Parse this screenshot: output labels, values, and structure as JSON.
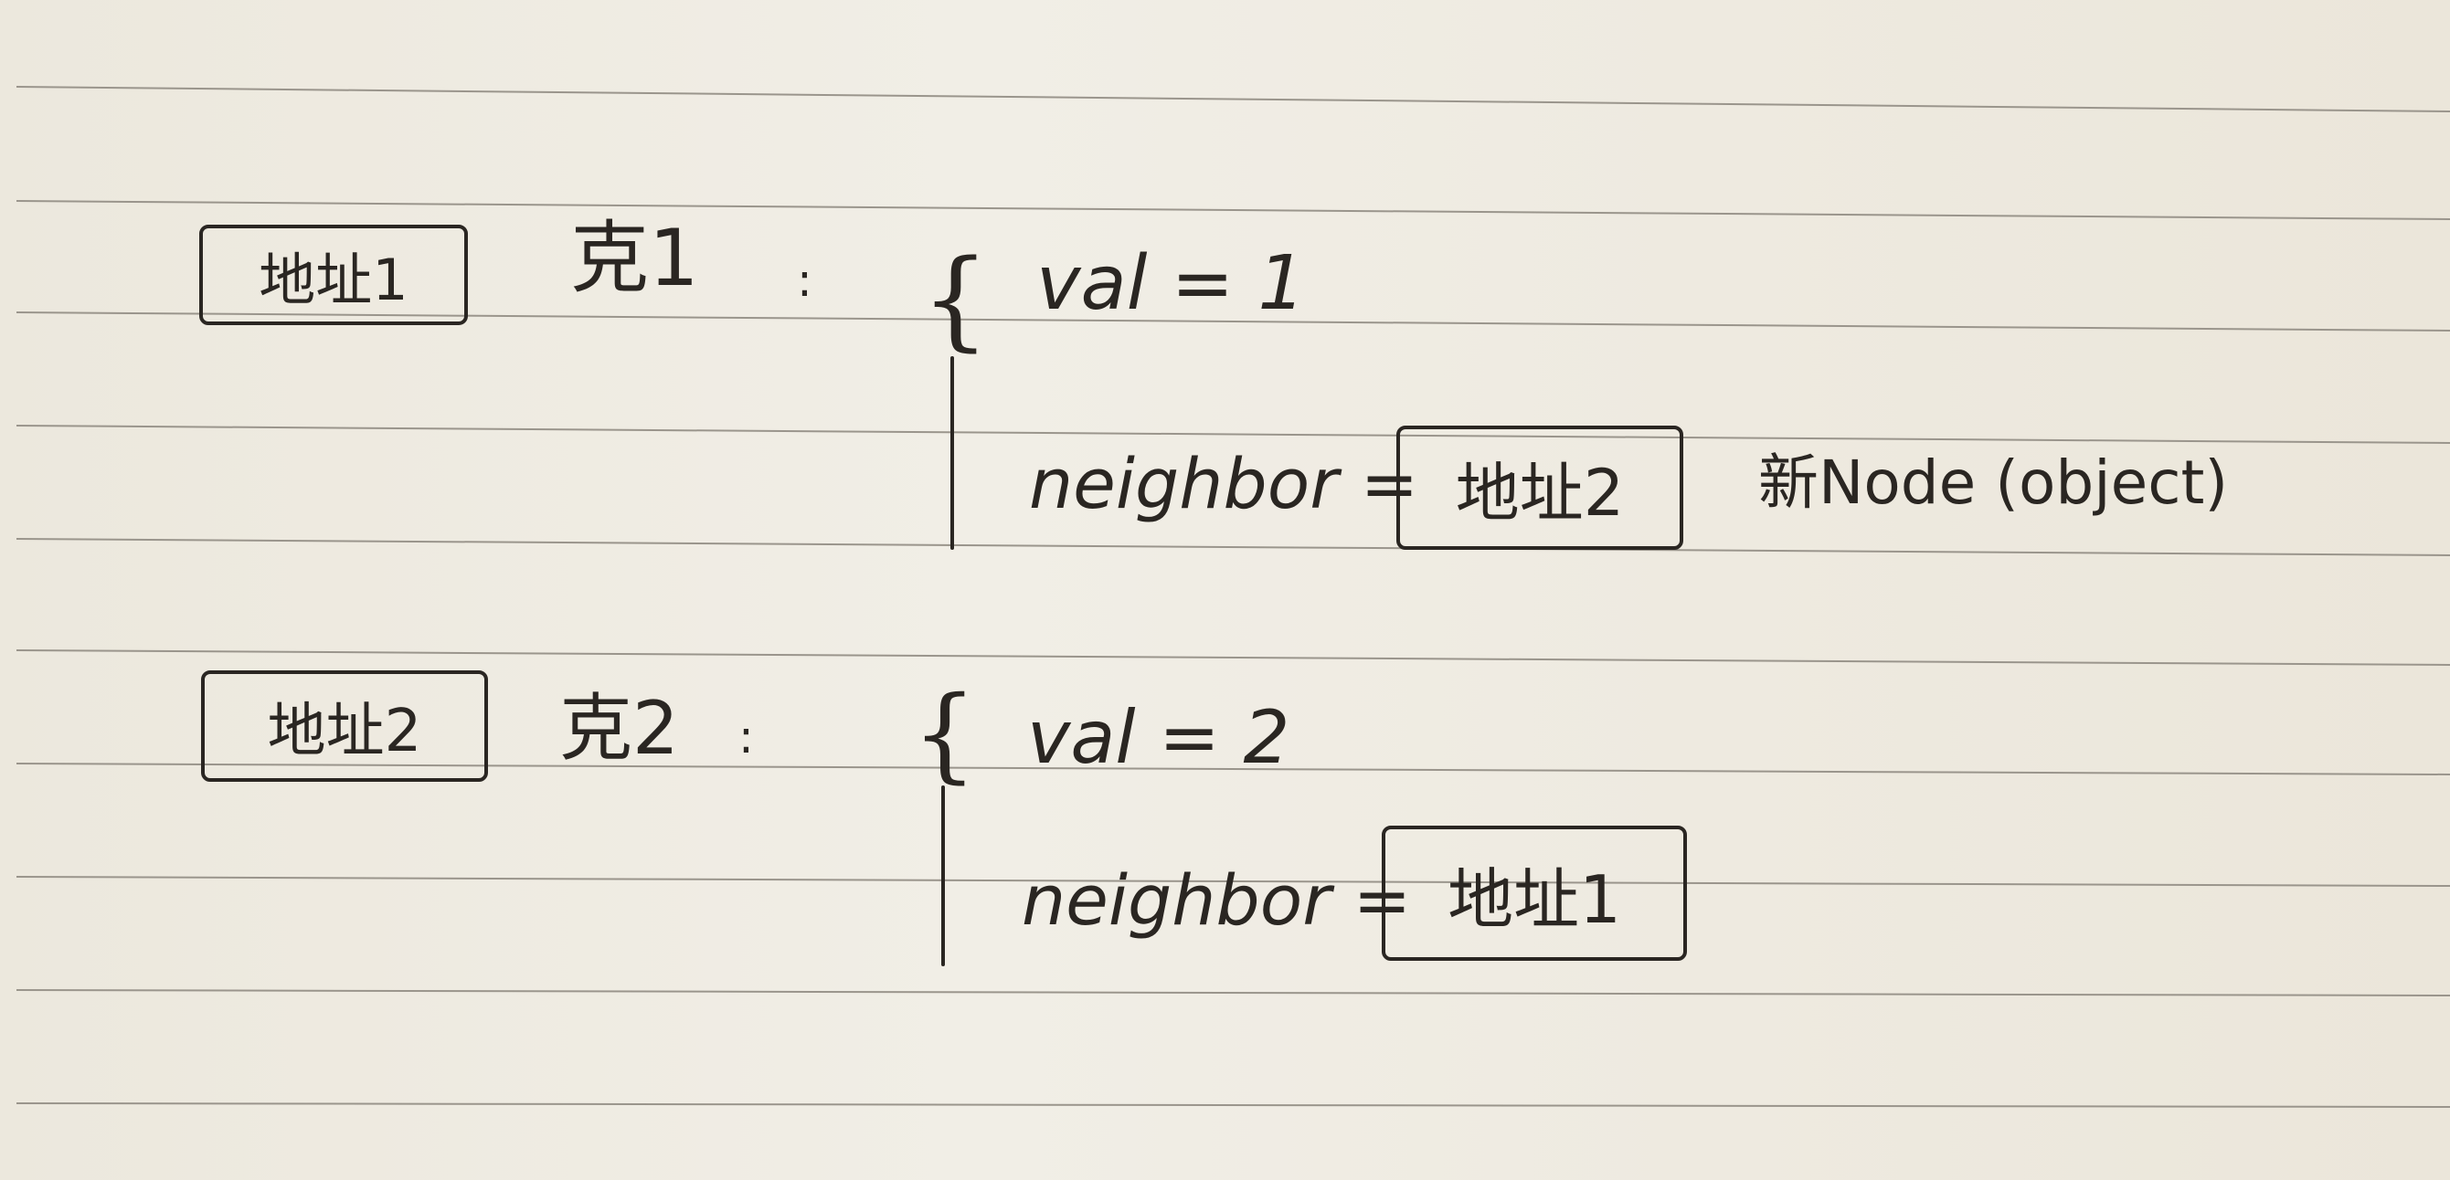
{
  "note": {
    "node1": {
      "address_label": "地址1",
      "name": "克1",
      "separator": ":",
      "val_line": "val = 1",
      "neighbor_key": "neighbor =",
      "neighbor_address": "地址2",
      "annotation": "新Node (object)"
    },
    "node2": {
      "address_label": "地址2",
      "name": "克2",
      "separator": ":",
      "val_line": "val = 2",
      "neighbor_key": "neighbor =",
      "neighbor_address": "地址1"
    }
  },
  "colors": {
    "paper": "#efebe2",
    "ink": "#2a2622",
    "rule_line": "#9a958c"
  }
}
